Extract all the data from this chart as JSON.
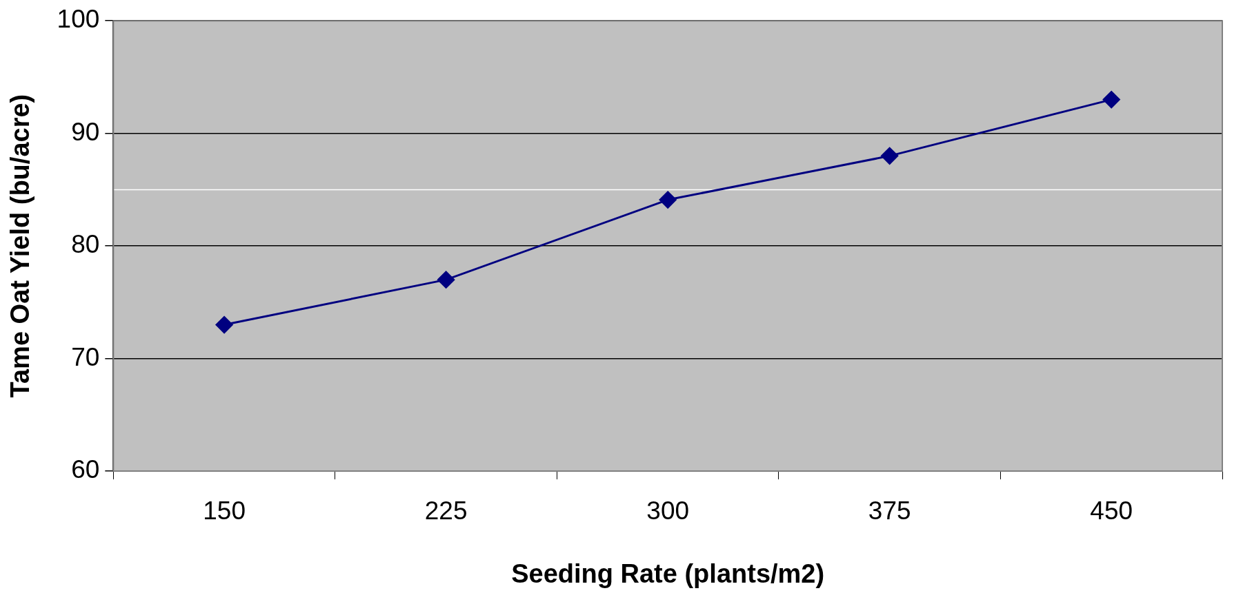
{
  "chart_data": {
    "type": "line",
    "xlabel": "Seeding Rate (plants/m2)",
    "ylabel": "Tame Oat Yield (bu/acre)",
    "categories": [
      "150",
      "225",
      "300",
      "375",
      "450"
    ],
    "series": [
      {
        "color": "#000080",
        "values": [
          73,
          77,
          84.1,
          88,
          93
        ]
      }
    ],
    "ylim": [
      60,
      100
    ],
    "yticks": [
      60,
      70,
      80,
      90,
      100
    ],
    "grid": "y",
    "legend": false,
    "marker": "diamond",
    "line_style": "solid",
    "ref_lines": [
      {
        "axis": "y",
        "value": 85,
        "color": "#ffffff"
      }
    ]
  }
}
